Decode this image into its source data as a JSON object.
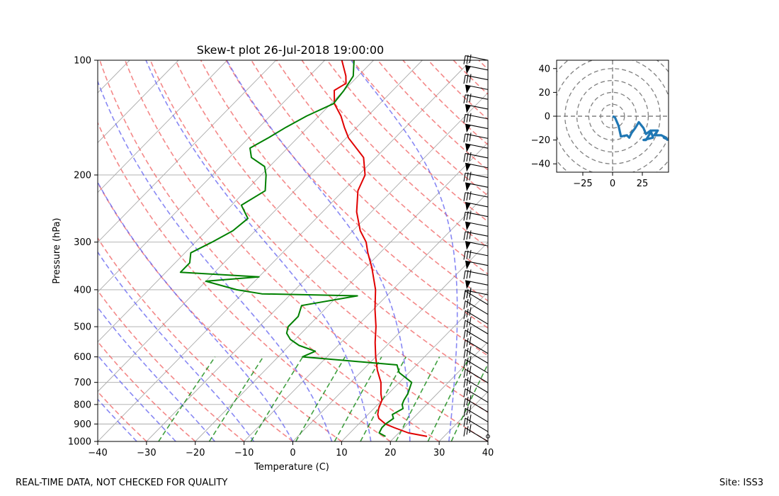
{
  "footer": {
    "left_note": "REAL-TIME DATA, NOT CHECKED FOR QUALITY",
    "site": "Site: ISS3"
  },
  "chart_data": [
    {
      "type": "line",
      "subtype": "skew-t",
      "title": "Skew-t plot 26-Jul-2018 19:00:00",
      "xlabel": "Temperature (C)",
      "ylabel": "Pressure (hPa)",
      "xlim": [
        -40,
        40
      ],
      "ylim": [
        1000,
        100
      ],
      "x_ticks": [
        -40,
        -30,
        -20,
        -10,
        0,
        10,
        20,
        30,
        40
      ],
      "y_ticks": [
        1000,
        900,
        800,
        700,
        600,
        500,
        400,
        300,
        200,
        100
      ],
      "grid": true,
      "colors": {
        "temperature": "#e00000",
        "dewpoint": "#008000",
        "dry_adiabat": "#f06060",
        "moist_adiabat": "#6060f0",
        "mixing_ratio": "#008000",
        "isotherm": "#aaaaaa"
      },
      "series": [
        {
          "name": "Temperature",
          "pressure": [
            970,
            950,
            920,
            900,
            870,
            850,
            820,
            800,
            780,
            750,
            700,
            650,
            600,
            550,
            500,
            450,
            400,
            350,
            320,
            300,
            280,
            250,
            220,
            200,
            180,
            160,
            150,
            140,
            130,
            120,
            115,
            110,
            100
          ],
          "values": [
            26.5,
            22,
            18,
            15.5,
            13,
            12,
            11,
            10.5,
            10,
            8.5,
            6.2,
            3,
            0,
            -3,
            -6,
            -9.7,
            -13.5,
            -18.7,
            -22.5,
            -25,
            -28.5,
            -33,
            -37,
            -38.7,
            -42.5,
            -49.5,
            -52.5,
            -55.5,
            -59.3,
            -62,
            -61,
            -62.5,
            -66.5
          ]
        },
        {
          "name": "Dewpoint",
          "pressure": [
            970,
            950,
            920,
            900,
            870,
            850,
            820,
            800,
            780,
            750,
            700,
            660,
            630,
            600,
            580,
            560,
            540,
            520,
            500,
            470,
            440,
            415,
            410,
            400,
            380,
            370,
            360,
            340,
            320,
            300,
            280,
            260,
            240,
            220,
            200,
            190,
            180,
            170,
            160,
            150,
            140,
            130,
            120,
            110,
            100
          ],
          "values": [
            18,
            16,
            15.5,
            15.5,
            16,
            15,
            16,
            15,
            14.5,
            14,
            12.5,
            8,
            6,
            -15,
            -13.5,
            -18,
            -21,
            -23,
            -24,
            -24,
            -25.5,
            -16,
            -36,
            -42,
            -50,
            -40,
            -57,
            -57,
            -58.8,
            -56.6,
            -54.6,
            -54,
            -58,
            -56,
            -59,
            -61,
            -65.5,
            -67.7,
            -66,
            -64.5,
            -62.5,
            -59.5,
            -60,
            -61,
            -64
          ]
        }
      ],
      "wind_profile": {
        "description": "wind barbs along right edge",
        "levels": 40
      }
    },
    {
      "type": "scatter",
      "subtype": "hodograph",
      "xlim": [
        -47,
        47
      ],
      "ylim": [
        -47,
        47
      ],
      "x_ticks": [
        -25,
        0,
        25
      ],
      "y_ticks": [
        40,
        20,
        0,
        -20,
        -40
      ],
      "rings": [
        10,
        20,
        30,
        40,
        50,
        60
      ],
      "color": "#1f77b4",
      "u": [
        0,
        2,
        5,
        7,
        12,
        14,
        16,
        19,
        22,
        26,
        28,
        32,
        34,
        30,
        26,
        28,
        33,
        38,
        35,
        41,
        45,
        43,
        47
      ],
      "v": [
        0,
        -1,
        -8,
        -17,
        -16,
        -18,
        -14,
        -10,
        -5,
        -10,
        -15,
        -12,
        -18,
        -19,
        -20,
        -20,
        -12,
        -12,
        -16,
        -16,
        -18,
        -18,
        -20
      ]
    }
  ]
}
